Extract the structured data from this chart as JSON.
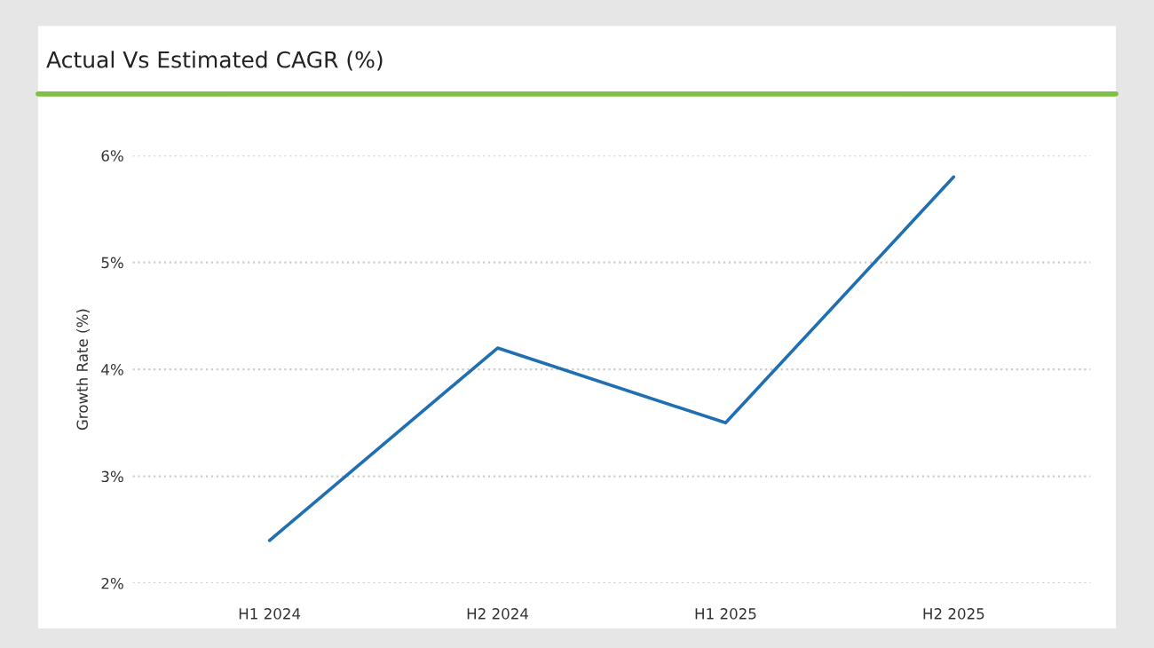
{
  "chart_data": {
    "type": "line",
    "title": "Actual Vs Estimated CAGR (%)",
    "ylabel": "Growth Rate (%)",
    "categories": [
      "H1 2024",
      "H2 2024",
      "H1 2025",
      "H2 2025"
    ],
    "series": [
      {
        "color": "#1f6fb2",
        "values": [
          2.4,
          4.2,
          3.5,
          5.8
        ]
      }
    ],
    "ylim": [
      2,
      6
    ],
    "yticks": [
      {
        "value": 2,
        "label": "2%"
      },
      {
        "value": 3,
        "label": "3%"
      },
      {
        "value": 4,
        "label": "4%"
      },
      {
        "value": 5,
        "label": "5%"
      },
      {
        "value": 6,
        "label": "6%"
      }
    ],
    "grid": "y",
    "legend": false
  }
}
